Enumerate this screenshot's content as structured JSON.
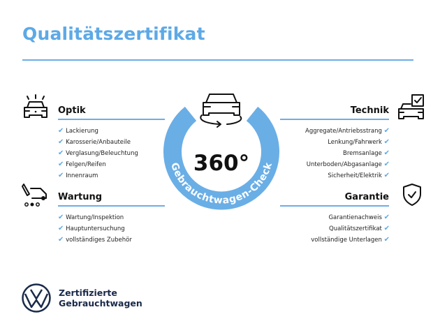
{
  "title": "Qualitätszertifikat",
  "badge": {
    "value": "360°",
    "ring_text": "Gebrauchtwagen-Check",
    "ring_color": "#6aaee6"
  },
  "accent_color": "#5da9e6",
  "sections": {
    "optik": {
      "label": "Optik",
      "icon": "car-lights-icon",
      "items": [
        "Lackierung",
        "Karosserie/Anbauteile",
        "Verglasung/Beleuchtung",
        "Felgen/Reifen",
        "Innenraum"
      ]
    },
    "wartung": {
      "label": "Wartung",
      "icon": "maintenance-van-icon",
      "items": [
        "Wartung/Inspektion",
        "Hauptuntersuchung",
        "vollständiges Zubehör"
      ]
    },
    "technik": {
      "label": "Technik",
      "icon": "car-checklist-icon",
      "items": [
        "Aggregate/Antriebsstrang",
        "Lenkung/Fahrwerk",
        "Bremsanlage",
        "Unterboden/Abgasanlage",
        "Sicherheit/Elektrik"
      ]
    },
    "garantie": {
      "label": "Garantie",
      "icon": "shield-check-icon",
      "items": [
        "Garantienachweis",
        "Qualitätszertifikat",
        "vollständige Unterlagen"
      ]
    }
  },
  "check_mark": "✔",
  "footer": {
    "line1": "Zertifizierte",
    "line2": "Gebrauchtwagen",
    "logo": "vw-logo"
  }
}
